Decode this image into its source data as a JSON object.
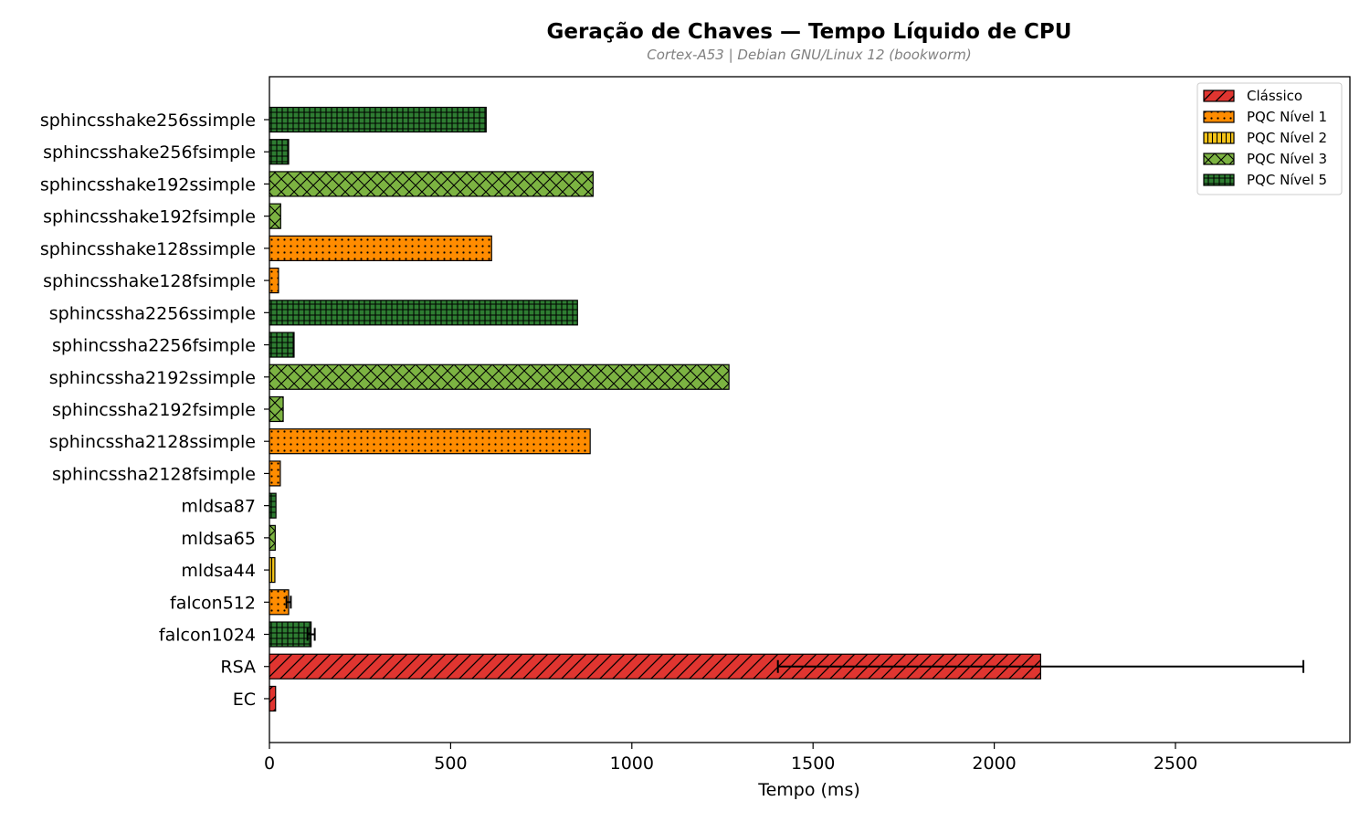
{
  "chart_data": {
    "type": "bar",
    "orientation": "horizontal",
    "title": "Geração de Chaves — Tempo Líquido de CPU",
    "subtitle": "Cortex-A53 | Debian GNU/Linux 12 (bookworm)",
    "xlabel": "Tempo (ms)",
    "ylabel": "",
    "xlim": [
      0,
      3000
    ],
    "xticks": [
      0,
      500,
      1000,
      1500,
      2000,
      2500
    ],
    "grid": false,
    "legend_position": "top-right",
    "categories": [
      {
        "name": "sphincsshake256ssimple",
        "value": 598,
        "group": "PQC Nível 5",
        "err": 0
      },
      {
        "name": "sphincsshake256fsimple",
        "value": 53,
        "group": "PQC Nível 5",
        "err": 0
      },
      {
        "name": "sphincsshake192ssimple",
        "value": 893,
        "group": "PQC Nível 3",
        "err": 0
      },
      {
        "name": "sphincsshake192fsimple",
        "value": 31,
        "group": "PQC Nível 3",
        "err": 0
      },
      {
        "name": "sphincsshake128ssimple",
        "value": 613,
        "group": "PQC Nível 1",
        "err": 0
      },
      {
        "name": "sphincsshake128fsimple",
        "value": 25,
        "group": "PQC Nível 1",
        "err": 0
      },
      {
        "name": "sphincssha2256ssimple",
        "value": 850,
        "group": "PQC Nível 5",
        "err": 0
      },
      {
        "name": "sphincssha2256fsimple",
        "value": 68,
        "group": "PQC Nível 5",
        "err": 0
      },
      {
        "name": "sphincssha2192ssimple",
        "value": 1268,
        "group": "PQC Nível 3",
        "err": 0
      },
      {
        "name": "sphincssha2192fsimple",
        "value": 38,
        "group": "PQC Nível 3",
        "err": 0
      },
      {
        "name": "sphincssha2128ssimple",
        "value": 885,
        "group": "PQC Nível 1",
        "err": 0
      },
      {
        "name": "sphincssha2128fsimple",
        "value": 30,
        "group": "PQC Nível 1",
        "err": 0
      },
      {
        "name": "mldsa87",
        "value": 18,
        "group": "PQC Nível 5",
        "err": 0
      },
      {
        "name": "mldsa65",
        "value": 16,
        "group": "PQC Nível 3",
        "err": 0
      },
      {
        "name": "mldsa44",
        "value": 15,
        "group": "PQC Nível 2",
        "err": 0
      },
      {
        "name": "falcon512",
        "value": 53,
        "group": "PQC Nível 1",
        "err": 6
      },
      {
        "name": "falcon1024",
        "value": 115,
        "group": "PQC Nível 5",
        "err": 10
      },
      {
        "name": "RSA",
        "value": 2128,
        "group": "Clássico",
        "err": 725
      },
      {
        "name": "EC",
        "value": 17,
        "group": "Clássico",
        "err": 0
      }
    ],
    "legend": [
      {
        "name": "Clássico",
        "color": "#e03530",
        "hatch": "diagonal"
      },
      {
        "name": "PQC Nível 1",
        "color": "#ff8c00",
        "hatch": "dots"
      },
      {
        "name": "PQC Nível 2",
        "color": "#f5c518",
        "hatch": "vertical"
      },
      {
        "name": "PQC Nível 3",
        "color": "#7cb342",
        "hatch": "cross"
      },
      {
        "name": "PQC Nível 5",
        "color": "#2e7d32",
        "hatch": "grid"
      }
    ]
  }
}
